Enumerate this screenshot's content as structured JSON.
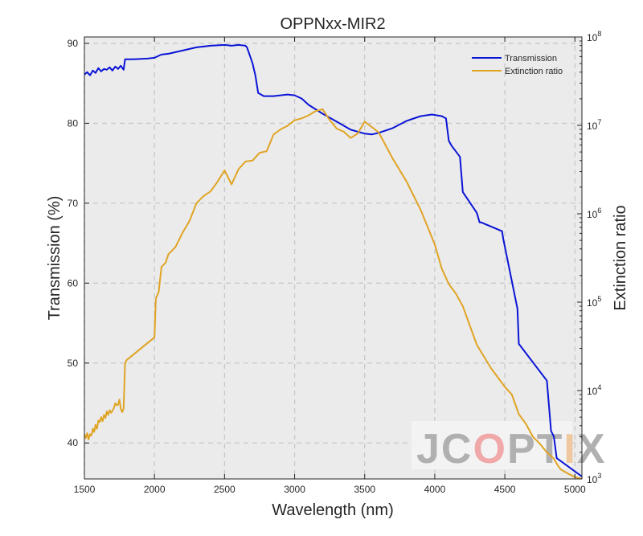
{
  "chart_data": {
    "type": "line",
    "title": "OPPNxx-MIR2",
    "xlabel": "Wavelength (nm)",
    "ylabel": "Transmission (%)",
    "y2label": "Extinction ratio",
    "xlim": [
      1500,
      5050
    ],
    "ylim": [
      35.5,
      90.8
    ],
    "y2lim": [
      1000,
      100000000
    ],
    "y2scale": "log",
    "x_ticks": [
      1500,
      2000,
      2500,
      3000,
      3500,
      4000,
      4500,
      5000
    ],
    "y_ticks": [
      40,
      50,
      60,
      70,
      80,
      90
    ],
    "y2_ticks": [
      {
        "value": 1000,
        "base": "10",
        "exp": "3"
      },
      {
        "value": 10000,
        "base": "10",
        "exp": "4"
      },
      {
        "value": 100000,
        "base": "10",
        "exp": "5"
      },
      {
        "value": 1000000,
        "base": "10",
        "exp": "6"
      },
      {
        "value": 10000000,
        "base": "10",
        "exp": "7"
      },
      {
        "value": 100000000,
        "base": "10",
        "exp": "8"
      }
    ],
    "grid": true,
    "legend_position": "top-right",
    "series": [
      {
        "name": "Transmission",
        "axis": "left",
        "color": "#0a14d6",
        "x": [
          1500,
          1520,
          1540,
          1560,
          1580,
          1600,
          1620,
          1640,
          1660,
          1680,
          1700,
          1720,
          1740,
          1760,
          1780,
          1790,
          1850,
          1950,
          2000,
          2050,
          2100,
          2200,
          2300,
          2400,
          2500,
          2550,
          2600,
          2650,
          2660,
          2680,
          2700,
          2720,
          2740,
          2780,
          2850,
          2950,
          3000,
          3050,
          3100,
          3200,
          3300,
          3400,
          3500,
          3550,
          3600,
          3700,
          3800,
          3900,
          3980,
          4050,
          4080,
          4100,
          4120,
          4180,
          4200,
          4300,
          4320,
          4330,
          4480,
          4490,
          4590,
          4600,
          4800,
          4830,
          4850,
          4870,
          5050
        ],
        "y": [
          86.1,
          86.4,
          86.0,
          86.6,
          86.3,
          86.9,
          86.5,
          86.8,
          86.7,
          87.0,
          86.6,
          87.1,
          86.8,
          87.2,
          86.7,
          88.0,
          88.0,
          88.1,
          88.2,
          88.6,
          88.7,
          89.1,
          89.5,
          89.7,
          89.8,
          89.7,
          89.8,
          89.7,
          89.5,
          88.5,
          87.5,
          86.0,
          83.8,
          83.4,
          83.4,
          83.6,
          83.5,
          83.1,
          82.3,
          81.2,
          80.2,
          79.2,
          78.7,
          78.6,
          78.8,
          79.4,
          80.3,
          80.9,
          81.1,
          80.9,
          80.6,
          77.8,
          77.2,
          75.8,
          71.4,
          68.8,
          67.6,
          67.6,
          66.5,
          65.4,
          56.8,
          52.4,
          47.8,
          41.5,
          40.8,
          38.1,
          35.8
        ]
      },
      {
        "name": "Extinction ratio",
        "axis": "right",
        "color": "#e0a424",
        "x": [
          1500,
          1510,
          1520,
          1530,
          1540,
          1550,
          1560,
          1570,
          1580,
          1590,
          1600,
          1610,
          1620,
          1630,
          1640,
          1650,
          1660,
          1670,
          1680,
          1690,
          1700,
          1710,
          1720,
          1730,
          1740,
          1750,
          1760,
          1770,
          1780,
          1790,
          1800,
          2000,
          2010,
          2030,
          2050,
          2080,
          2100,
          2150,
          2200,
          2250,
          2300,
          2350,
          2400,
          2450,
          2500,
          2550,
          2600,
          2650,
          2700,
          2750,
          2800,
          2850,
          2900,
          2950,
          3000,
          3050,
          3100,
          3150,
          3200,
          3250,
          3300,
          3350,
          3400,
          3450,
          3500,
          3550,
          3600,
          3700,
          3800,
          3900,
          4000,
          4050,
          4100,
          4150,
          4200,
          4300,
          4400,
          4500,
          4550,
          4600,
          4650,
          4700,
          4750,
          4800,
          4850,
          4880,
          4900,
          4950,
          5000,
          5050
        ],
        "y": [
          3200,
          2900,
          3300,
          2800,
          3200,
          3100,
          3700,
          3400,
          4100,
          3700,
          4600,
          4400,
          5000,
          4500,
          5300,
          4900,
          5800,
          5300,
          6000,
          5600,
          5900,
          6300,
          7200,
          6800,
          6900,
          7900,
          6200,
          5700,
          6300,
          20000,
          22000,
          40000,
          110000,
          130000,
          250000,
          280000,
          350000,
          420000,
          610000,
          830000,
          1320000,
          1580000,
          1790000,
          2300000,
          3100000,
          2150000,
          3200000,
          3900000,
          4000000,
          4900000,
          5100000,
          7900000,
          9000000,
          9900000,
          11400000,
          12000000,
          13000000,
          14500000,
          15200000,
          11500000,
          9200000,
          8500000,
          7200000,
          8100000,
          11000000,
          9600000,
          8300000,
          4200000,
          2300000,
          1100000,
          450000,
          240000,
          160000,
          125000,
          90000,
          33000,
          18000,
          11000,
          9000,
          5400,
          4200,
          3000,
          2500,
          2000,
          1700,
          1400,
          1280,
          1150,
          1050,
          1000
        ]
      }
    ]
  },
  "watermark": {
    "text": "JCOPTIX",
    "colors": [
      "#b0b0b0",
      "#b0b0b0",
      "#f0a8a8",
      "#b0b0b0",
      "#b0b0b0",
      "#f0c8a0",
      "#b0b0b0"
    ]
  },
  "colors": {
    "plot_background": "#ebebeb",
    "grid": "#c8c8c8",
    "axis": "#262626"
  }
}
